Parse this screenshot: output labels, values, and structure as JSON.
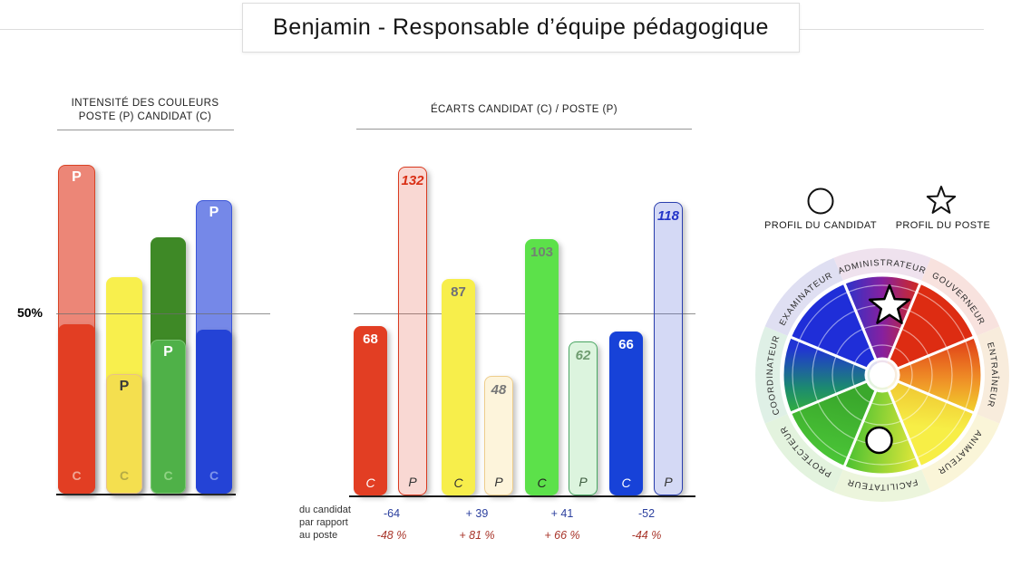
{
  "title": "Benjamin - Responsable d’équipe pédagogique",
  "colors": {
    "red": "#e23e23",
    "yellow": "#f7ee4b",
    "green": "#5ce14a",
    "blue": "#1742d8"
  },
  "intensity_chart": {
    "header_line1": "INTENSITÉ DES COULEURS",
    "header_line2": "POSTE (P) CANDIDAT (C)",
    "axis_label_50": "50%",
    "bar_label_poste": "P",
    "bar_label_candidat": "C"
  },
  "ecarts_chart": {
    "header": "ÉCARTS CANDIDAT (C) / POSTE (P)",
    "note_line1": "du candidat",
    "note_line2": "par rapport",
    "note_line3": "au poste",
    "diffs": [
      "-64",
      "+ 39",
      "+ 41",
      "-52"
    ],
    "pcts": [
      "-48 %",
      "+ 81 %",
      "+ 66 %",
      "-44 %"
    ]
  },
  "legend": {
    "candidat": "PROFIL DU CANDIDAT",
    "poste": "PROFIL DU POSTE"
  },
  "wheel": {
    "labels": [
      "ADMINISTRATEUR",
      "GOUVERNEUR",
      "ENTRAÎNEUR",
      "ANIMATEUR",
      "FACILITATEUR",
      "PROTECTEUR",
      "COORDINATEUR",
      "EXAMINATEUR"
    ],
    "candidate_marker_segment": "FACILITATEUR",
    "poste_marker_segment": "ADMINISTRATEUR"
  },
  "chart_data": [
    {
      "type": "bar",
      "title": "INTENSITÉ DES COULEURS POSTE (P) CANDIDAT (C)",
      "categories": [
        "rouge",
        "jaune",
        "vert",
        "bleu"
      ],
      "series": [
        {
          "name": "C (candidat)",
          "values": [
            68,
            87,
            103,
            66
          ]
        },
        {
          "name": "P (poste)",
          "values": [
            132,
            48,
            62,
            118
          ]
        }
      ],
      "annotations": [
        "50%"
      ],
      "grid": false,
      "layout_hint": "overlapping P/C bars per colour, larger value drawn behind translucent"
    },
    {
      "type": "bar",
      "title": "ÉCARTS CANDIDAT (C) / POSTE (P)",
      "categories": [
        "rouge C",
        "rouge P",
        "jaune C",
        "jaune P",
        "vert C",
        "vert P",
        "bleu C",
        "bleu P"
      ],
      "values": [
        68,
        132,
        87,
        48,
        103,
        62,
        66,
        118
      ],
      "data_labels": true,
      "footer_label": "du candidat par rapport au poste",
      "footer_diffs": [
        "-64",
        "+ 39",
        "+ 41",
        "-52"
      ],
      "footer_pcts": [
        "-48 %",
        "+ 81 %",
        "+ 66 %",
        "-44 %"
      ]
    },
    {
      "type": "pie",
      "title": "Roue des profils",
      "categories": [
        "ADMINISTRATEUR",
        "GOUVERNEUR",
        "ENTRAÎNEUR",
        "ANIMATEUR",
        "FACILITATEUR",
        "PROTECTEUR",
        "COORDINATEUR",
        "EXAMINATEUR"
      ],
      "values": [
        1,
        1,
        1,
        1,
        1,
        1,
        1,
        1
      ],
      "markers": [
        {
          "shape": "star",
          "meaning": "PROFIL DU POSTE",
          "segment": "ADMINISTRATEUR"
        },
        {
          "shape": "circle",
          "meaning": "PROFIL DU CANDIDAT",
          "segment": "FACILITATEUR"
        }
      ]
    }
  ]
}
